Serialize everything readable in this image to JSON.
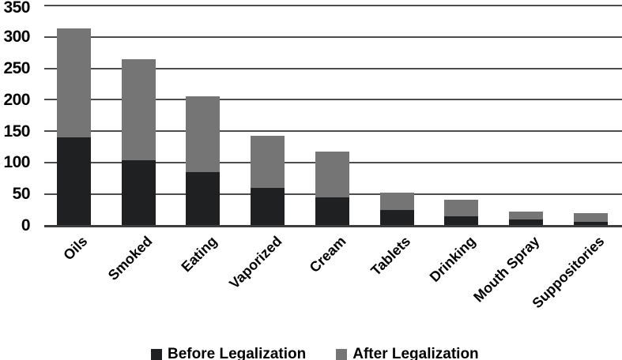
{
  "chart_data": {
    "type": "bar",
    "stacked": true,
    "orientation": "vertical",
    "title": "",
    "xlabel": "",
    "ylabel": "",
    "categories": [
      "Oils",
      "Smoked",
      "Eating",
      "Vaporized",
      "Cream",
      "Tablets",
      "Drinking",
      "Mouth Spray",
      "Suppositories"
    ],
    "series": [
      {
        "name": "Before Legalization",
        "color": "#1f2022",
        "values": [
          140,
          104,
          85,
          60,
          45,
          24,
          15,
          9,
          6
        ]
      },
      {
        "name": "After Legalization",
        "color": "#757575",
        "values": [
          173,
          160,
          120,
          83,
          72,
          28,
          26,
          13,
          14
        ]
      }
    ],
    "stack_totals": [
      313,
      264,
      205,
      143,
      117,
      52,
      41,
      22,
      20
    ],
    "ylim": [
      0,
      350
    ],
    "yticks": [
      0,
      50,
      100,
      150,
      200,
      250,
      300,
      350
    ],
    "grid": true,
    "x_label_rotation_deg": 45,
    "legend_position": "bottom"
  },
  "colors": {
    "background": "#ffffff",
    "gridline": "#4d4d4d",
    "axis_line": "#3d3d3d",
    "text": "#000000"
  }
}
